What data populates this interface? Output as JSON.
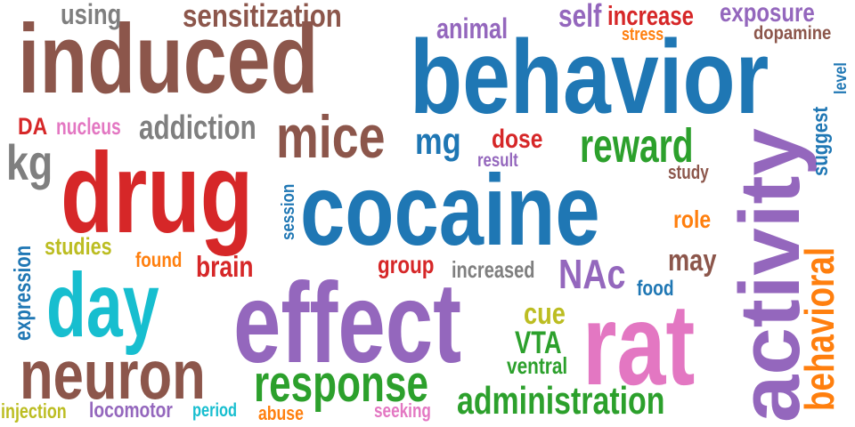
{
  "words": [
    {
      "text": "induced",
      "color": "#8c564b"
    },
    {
      "text": "behavior",
      "color": "#1f77b4"
    },
    {
      "text": "cocaine",
      "color": "#1f77b4"
    },
    {
      "text": "drug",
      "color": "#d62728"
    },
    {
      "text": "effect",
      "color": "#9467bd"
    },
    {
      "text": "rat",
      "color": "#e377c2"
    },
    {
      "text": "activity",
      "color": "#9467bd"
    },
    {
      "text": "day",
      "color": "#17becf"
    },
    {
      "text": "neuron",
      "color": "#8c564b"
    },
    {
      "text": "mice",
      "color": "#8c564b"
    },
    {
      "text": "reward",
      "color": "#2ca02c"
    },
    {
      "text": "response",
      "color": "#2ca02c"
    },
    {
      "text": "administration",
      "color": "#2ca02c"
    },
    {
      "text": "behavioral",
      "color": "#ff7f0e"
    },
    {
      "text": "sensitization",
      "color": "#8c564b"
    },
    {
      "text": "using",
      "color": "#7f7f7f"
    },
    {
      "text": "animal",
      "color": "#9467bd"
    },
    {
      "text": "self",
      "color": "#9467bd"
    },
    {
      "text": "increase",
      "color": "#d62728"
    },
    {
      "text": "exposure",
      "color": "#9467bd"
    },
    {
      "text": "stress",
      "color": "#ff7f0e"
    },
    {
      "text": "dopamine",
      "color": "#8c564b"
    },
    {
      "text": "level",
      "color": "#1f77b4"
    },
    {
      "text": "suggest",
      "color": "#1f77b4"
    },
    {
      "text": "DA",
      "color": "#d62728"
    },
    {
      "text": "nucleus",
      "color": "#e377c2"
    },
    {
      "text": "addiction",
      "color": "#7f7f7f"
    },
    {
      "text": "kg",
      "color": "#7f7f7f"
    },
    {
      "text": "mg",
      "color": "#1f77b4"
    },
    {
      "text": "dose",
      "color": "#d62728"
    },
    {
      "text": "result",
      "color": "#9467bd"
    },
    {
      "text": "study",
      "color": "#8c564b"
    },
    {
      "text": "session",
      "color": "#1f77b4"
    },
    {
      "text": "expression",
      "color": "#1f77b4"
    },
    {
      "text": "studies",
      "color": "#bcbd22"
    },
    {
      "text": "found",
      "color": "#ff7f0e"
    },
    {
      "text": "brain",
      "color": "#d62728"
    },
    {
      "text": "group",
      "color": "#d62728"
    },
    {
      "text": "increased",
      "color": "#7f7f7f"
    },
    {
      "text": "NAc",
      "color": "#9467bd"
    },
    {
      "text": "role",
      "color": "#ff7f0e"
    },
    {
      "text": "may",
      "color": "#8c564b"
    },
    {
      "text": "food",
      "color": "#1f77b4"
    },
    {
      "text": "cue",
      "color": "#bcbd22"
    },
    {
      "text": "VTA",
      "color": "#2ca02c"
    },
    {
      "text": "ventral",
      "color": "#2ca02c"
    },
    {
      "text": "injection",
      "color": "#bcbd22"
    },
    {
      "text": "locomotor",
      "color": "#9467bd"
    },
    {
      "text": "period",
      "color": "#17becf"
    },
    {
      "text": "abuse",
      "color": "#ff7f0e"
    },
    {
      "text": "seeking",
      "color": "#e377c2"
    }
  ]
}
